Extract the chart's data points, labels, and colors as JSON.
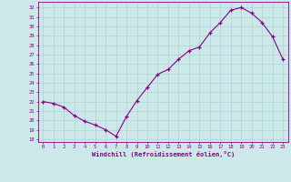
{
  "x": [
    0,
    1,
    2,
    3,
    4,
    5,
    6,
    7,
    8,
    9,
    10,
    11,
    12,
    13,
    14,
    15,
    16,
    17,
    18,
    19,
    20,
    21,
    22,
    23
  ],
  "y": [
    22.0,
    21.8,
    21.4,
    20.5,
    19.9,
    19.5,
    19.0,
    18.3,
    20.4,
    22.1,
    23.5,
    24.9,
    25.4,
    26.5,
    27.4,
    27.8,
    29.3,
    30.4,
    31.7,
    32.0,
    31.4,
    30.4,
    28.9,
    26.5
  ],
  "line_color": "#880088",
  "marker": "+",
  "marker_color": "#880088",
  "bg_color": "#cce8e8",
  "grid_color": "#aad4d4",
  "xlabel": "Windchill (Refroidissement éolien,°C)",
  "xlabel_color": "#880088",
  "ylabel_ticks": [
    18,
    19,
    20,
    21,
    22,
    23,
    24,
    25,
    26,
    27,
    28,
    29,
    30,
    31,
    32
  ],
  "xticks": [
    0,
    1,
    2,
    3,
    4,
    5,
    6,
    7,
    8,
    9,
    10,
    11,
    12,
    13,
    14,
    15,
    16,
    17,
    18,
    19,
    20,
    21,
    22,
    23
  ],
  "ylim": [
    17.7,
    32.6
  ],
  "xlim": [
    -0.5,
    23.5
  ],
  "tick_color": "#880088",
  "axis_color": "#880088"
}
